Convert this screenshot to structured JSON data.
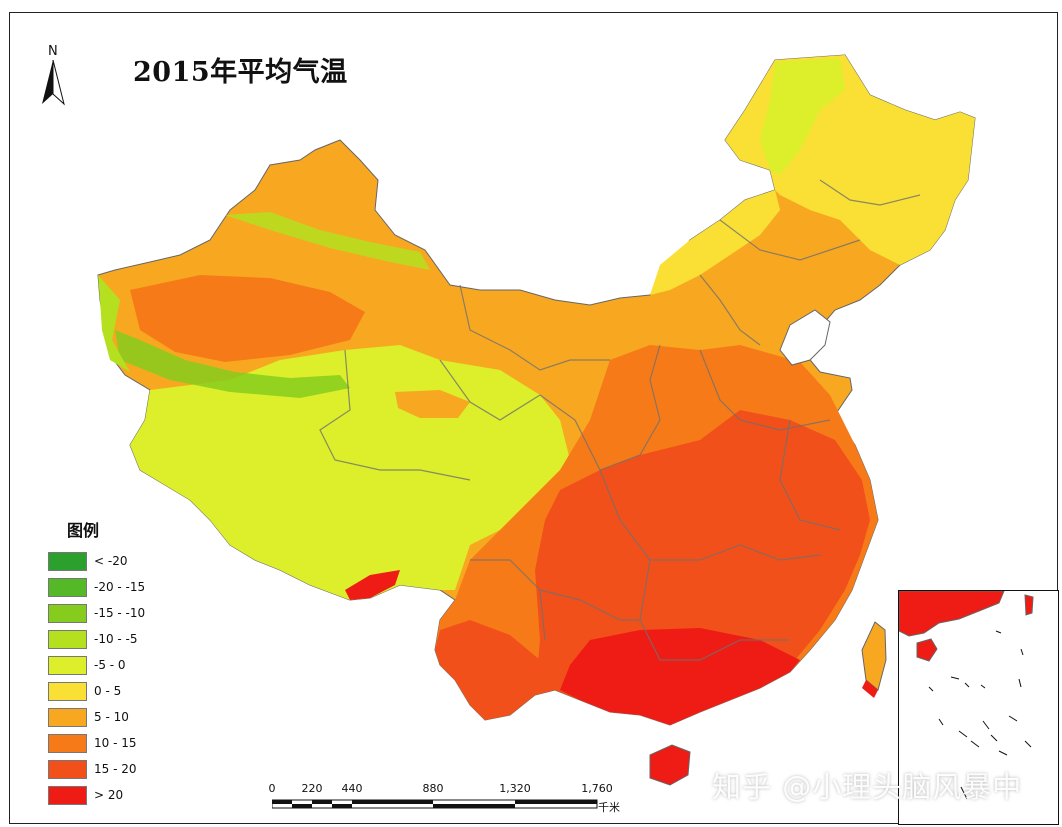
{
  "title": "2015年平均气温",
  "north_label": "N",
  "legend": {
    "title": "图例",
    "items": [
      {
        "label": "< -20",
        "color": "#2ca02c"
      },
      {
        "label": "-20 - -15",
        "color": "#55b826"
      },
      {
        "label": "-15 - -10",
        "color": "#86cc1c"
      },
      {
        "label": "-10 - -5",
        "color": "#b4e020"
      },
      {
        "label": "-5 - 0",
        "color": "#dcef2a"
      },
      {
        "label": "0 - 5",
        "color": "#fae034"
      },
      {
        "label": "5 - 10",
        "color": "#f8a820"
      },
      {
        "label": "10 - 15",
        "color": "#f67b18"
      },
      {
        "label": "15 - 20",
        "color": "#f2501a"
      },
      {
        "label": "> 20",
        "color": "#ee1c14"
      }
    ]
  },
  "scale": {
    "ticks": [
      "0",
      "220",
      "440",
      "880",
      "1,320",
      "1,760"
    ],
    "unit": "千米"
  },
  "watermark": "知乎 @小理头脑风暴中"
}
